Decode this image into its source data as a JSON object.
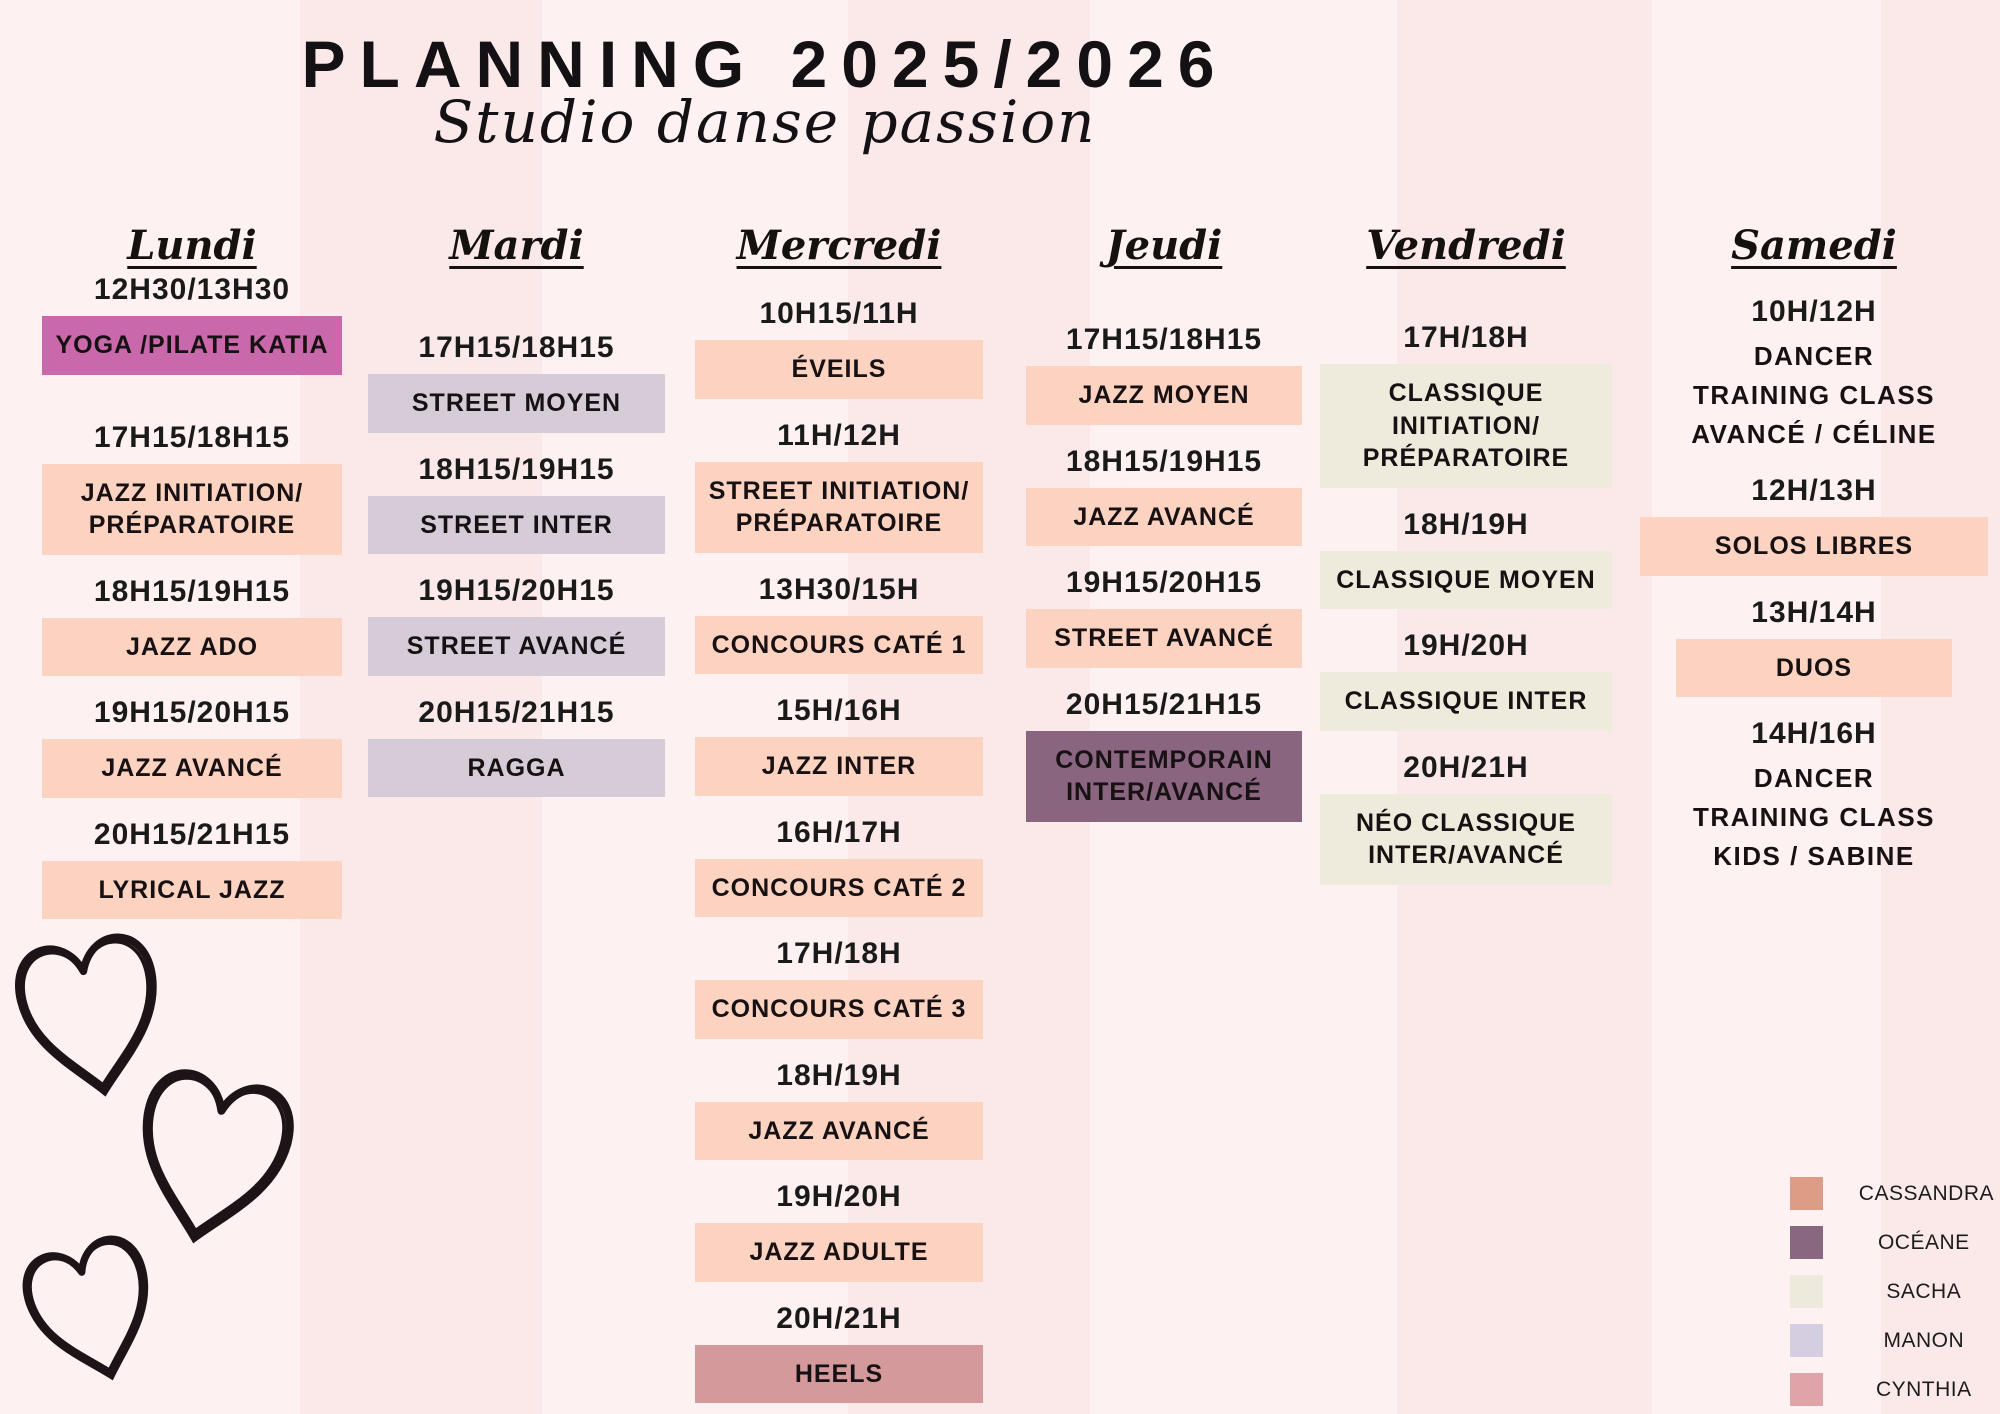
{
  "title": "PLANNING 2025/2026",
  "subtitle": "Studio danse passion",
  "colors": {
    "background_light": "#fdf2f1",
    "background_band": "#fbe9e9",
    "katia": "#c968aa",
    "cassandra": "#fcd3c0",
    "manon": "#d5ccd7",
    "sacha": "#eeebdc",
    "oceane": "#8a657f",
    "cynthia": "#d49a9b",
    "heart_outline": "#1d1418"
  },
  "days": [
    {
      "id": "lundi",
      "name": "Lundi",
      "slots": [
        {
          "time": "12H30/13H30",
          "label": "YOGA /PILATE KATIA",
          "style": "katia"
        },
        {
          "time": "17H15/18H15",
          "label": "JAZZ INITIATION/\nPRÉPARATOIRE",
          "style": "cassandra"
        },
        {
          "time": "18H15/19H15",
          "label": "JAZZ ADO",
          "style": "cassandra"
        },
        {
          "time": "19H15/20H15",
          "label": "JAZZ AVANCÉ",
          "style": "cassandra"
        },
        {
          "time": "20H15/21H15",
          "label": "LYRICAL JAZZ",
          "style": "cassandra"
        }
      ]
    },
    {
      "id": "mardi",
      "name": "Mardi",
      "slots": [
        {
          "time": "17H15/18H15",
          "label": "STREET MOYEN",
          "style": "manon"
        },
        {
          "time": "18H15/19H15",
          "label": "STREET INTER",
          "style": "manon"
        },
        {
          "time": "19H15/20H15",
          "label": "STREET AVANCÉ",
          "style": "manon"
        },
        {
          "time": "20H15/21H15",
          "label": "RAGGA",
          "style": "manon"
        }
      ]
    },
    {
      "id": "mercredi",
      "name": "Mercredi",
      "slots": [
        {
          "time": "10H15/11H",
          "label": "ÉVEILS",
          "style": "cassandra"
        },
        {
          "time": "11H/12H",
          "label": "STREET INITIATION/\nPRÉPARATOIRE",
          "style": "cassandra"
        },
        {
          "time": "13H30/15H",
          "label": "CONCOURS CATÉ 1",
          "style": "cassandra"
        },
        {
          "time": "15H/16H",
          "label": "JAZZ INTER",
          "style": "cassandra"
        },
        {
          "time": "16H/17H",
          "label": "CONCOURS CATÉ 2",
          "style": "cassandra"
        },
        {
          "time": "17H/18H",
          "label": "CONCOURS CATÉ 3",
          "style": "cassandra"
        },
        {
          "time": "18H/19H",
          "label": "JAZZ AVANCÉ",
          "style": "cassandra"
        },
        {
          "time": "19H/20H",
          "label": "JAZZ ADULTE",
          "style": "cassandra"
        },
        {
          "time": "20H/21H",
          "label": "HEELS",
          "style": "cynthia"
        }
      ]
    },
    {
      "id": "jeudi",
      "name": "Jeudi",
      "slots": [
        {
          "time": "17H15/18H15",
          "label": "JAZZ MOYEN",
          "style": "cassandra"
        },
        {
          "time": "18H15/19H15",
          "label": "JAZZ AVANCÉ",
          "style": "cassandra"
        },
        {
          "time": "19H15/20H15",
          "label": "STREET AVANCÉ",
          "style": "cassandra"
        },
        {
          "time": "20H15/21H15",
          "label": "CONTEMPORAIN\nINTER/AVANCÉ",
          "style": "oceane"
        }
      ]
    },
    {
      "id": "vendredi",
      "name": "Vendredi",
      "slots": [
        {
          "time": "17H/18H",
          "label": "CLASSIQUE INITIATION/\nPRÉPARATOIRE",
          "style": "sacha"
        },
        {
          "time": "18H/19H",
          "label": "CLASSIQUE MOYEN",
          "style": "sacha"
        },
        {
          "time": "19H/20H",
          "label": "CLASSIQUE INTER",
          "style": "sacha"
        },
        {
          "time": "20H/21H",
          "label": "NÉO CLASSIQUE\nINTER/AVANCÉ",
          "style": "sacha"
        }
      ]
    },
    {
      "id": "samedi",
      "name": "Samedi",
      "slots": [
        {
          "time": "10H/12H",
          "label": "DANCER\nTRAINING CLASS\nAVANCÉ / CÉLINE",
          "style": "plain"
        },
        {
          "time": "12H/13H",
          "label": "SOLOS LIBRES",
          "style": "cassandra"
        },
        {
          "time": "13H/14H",
          "label": "DUOS",
          "style": "cassandra"
        },
        {
          "time": "14H/16H",
          "label": "DANCER\nTRAINING CLASS\nKIDS / SABINE",
          "style": "plain"
        }
      ]
    }
  ],
  "legend": [
    {
      "name": "CASSANDRA",
      "color": "#dd9c85"
    },
    {
      "name": "OCÉANE",
      "color": "#8a6780"
    },
    {
      "name": "SACHA",
      "color": "#eeeadb"
    },
    {
      "name": "MANON",
      "color": "#d5cde0"
    },
    {
      "name": "CYNTHIA",
      "color": "#dfa3a8"
    }
  ],
  "decorations": {
    "hearts_count": 3
  }
}
